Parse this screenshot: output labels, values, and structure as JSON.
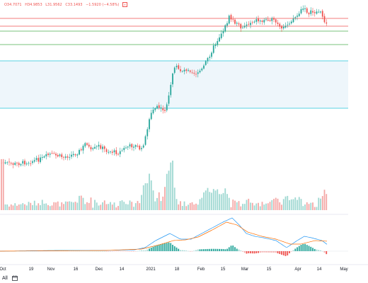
{
  "legend": {
    "open": "O34.7071",
    "high": "H34.9853",
    "low": "L31.9562",
    "close": "C33.1493",
    "change": "−1.5920 (−4.58%)"
  },
  "bottom_bar": {
    "timeframe": "All"
  },
  "colors": {
    "up": "#26a69a",
    "down": "#ef5350",
    "macd_line": "#2196f3",
    "signal_line": "#ff6d00",
    "band_fill": "#eef6fb",
    "resistance_red": "#ef5350",
    "support_green": "#4caf50",
    "level_teal": "#26c6da"
  },
  "chart_data": {
    "type": "candlestick",
    "x_tick_labels": [
      "Oct",
      "19",
      "Nov",
      "16",
      "Dec",
      "14",
      "2021",
      "18",
      "Feb",
      "15",
      "Mar",
      "15",
      "Apr",
      "14",
      "May"
    ],
    "grid": false,
    "legend": "top-left",
    "indicators": [
      "volume",
      "macd"
    ],
    "horizontal_levels": [
      {
        "color": "red",
        "position": "top"
      },
      {
        "color": "red",
        "position": "upper"
      },
      {
        "color": "green",
        "position": "upper"
      },
      {
        "color": "green",
        "position": "middle"
      },
      {
        "color": "teal",
        "position": "middle"
      },
      {
        "color": "teal",
        "position": "lower"
      }
    ],
    "shaded_band": "between green level and lower teal level"
  }
}
